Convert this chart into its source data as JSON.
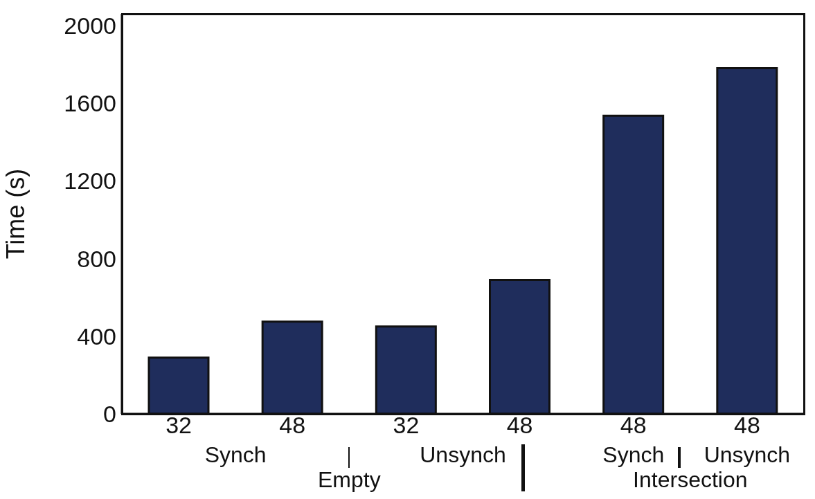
{
  "chart_data": {
    "type": "bar",
    "ylabel": "Time (s)",
    "categories": [
      "32",
      "48",
      "32",
      "48",
      "48",
      "48"
    ],
    "values": [
      290,
      475,
      450,
      690,
      1535,
      1780
    ],
    "color": "#1f2d5c",
    "ylim": [
      0,
      2060
    ],
    "yticks": [
      0,
      400,
      800,
      1200,
      1600,
      2000
    ],
    "annotations": [
      "Synch",
      "Unsynch",
      "Empty",
      "Synch",
      "Unsynch",
      "Intersection"
    ]
  }
}
